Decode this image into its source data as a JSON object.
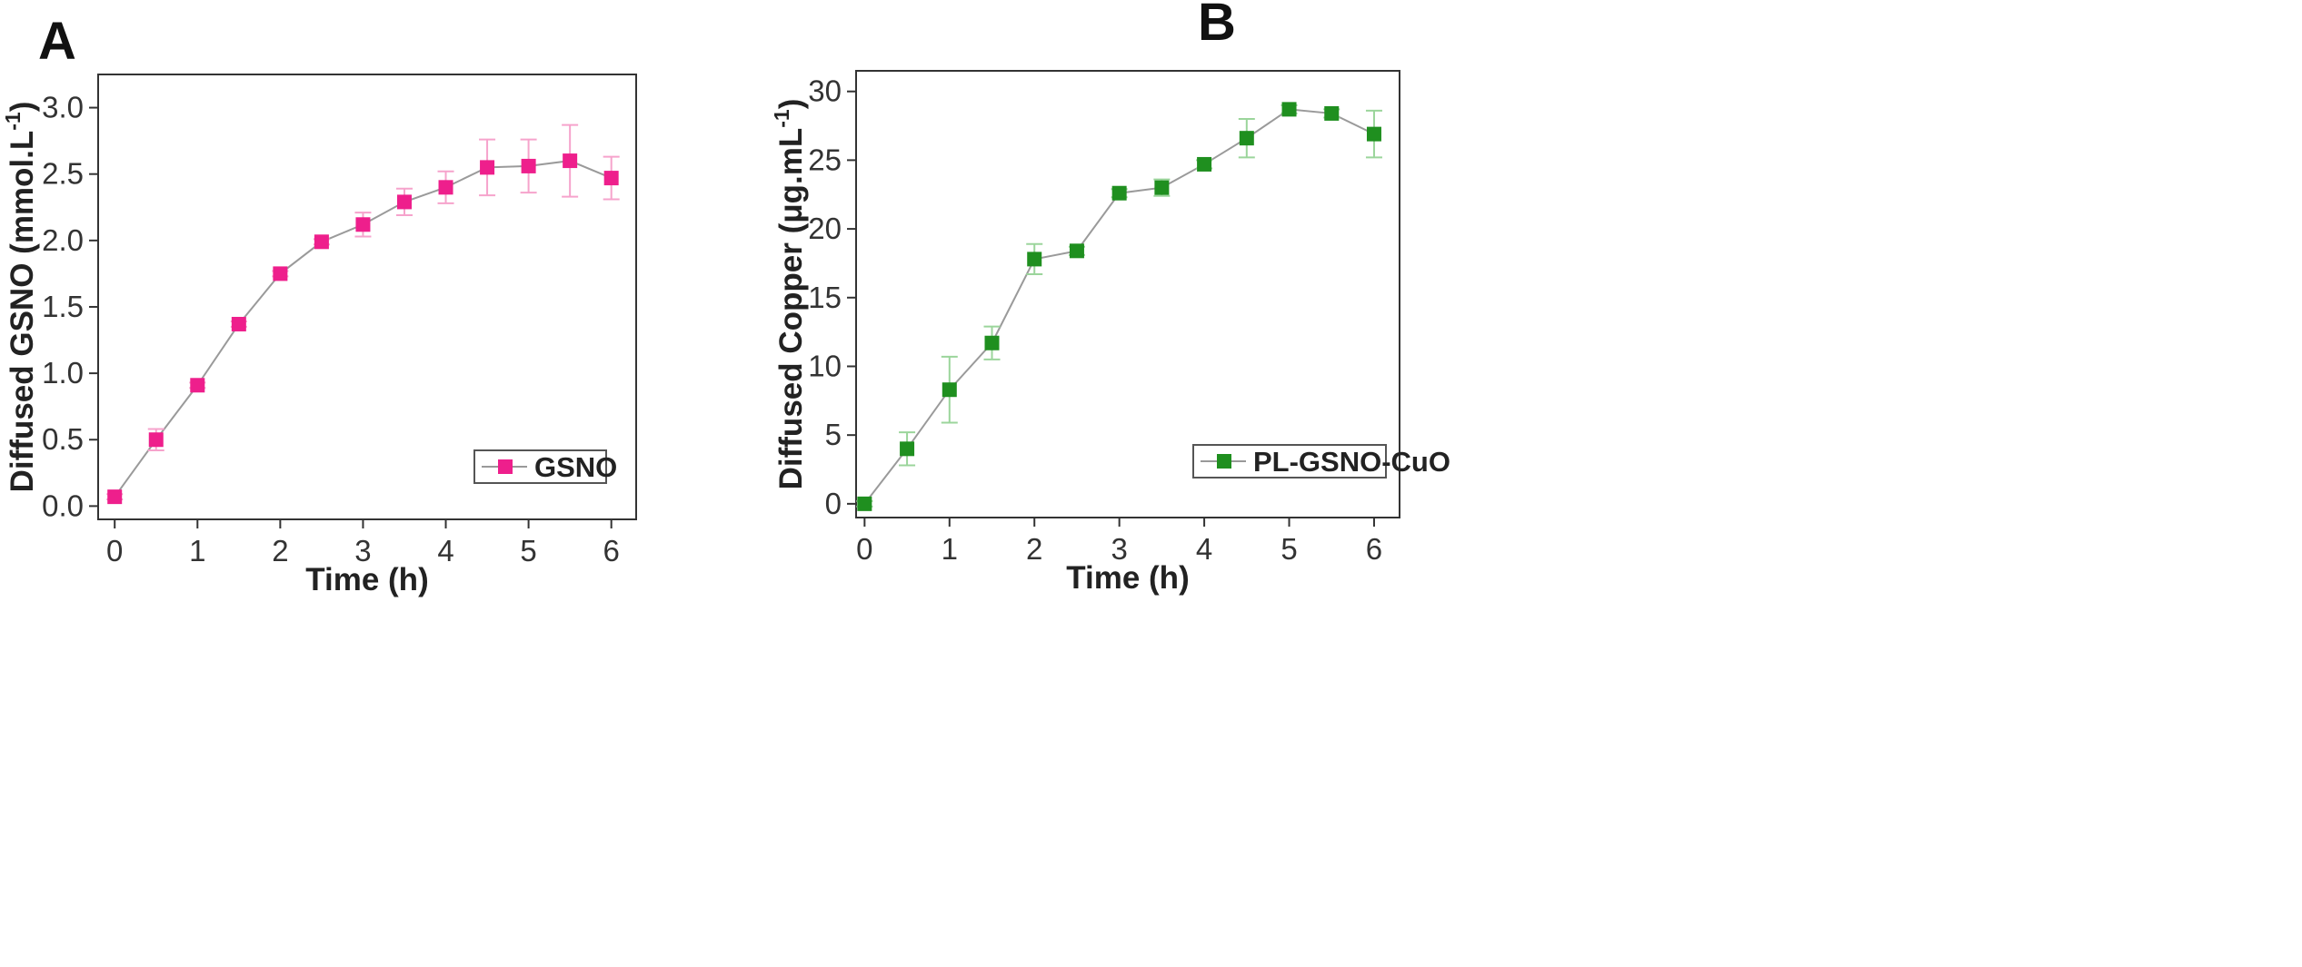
{
  "chart_data": [
    {
      "panel": "A",
      "type": "line",
      "xlabel": "Time (h)",
      "ylabel": "Diffused GSNO (mmol.L",
      "ylabel_sup": "-1",
      "ylabel_end": ")",
      "xlim": [
        -0.2,
        6.3
      ],
      "ylim": [
        -0.1,
        3.25
      ],
      "xticks": [
        0,
        1,
        2,
        3,
        4,
        5,
        6
      ],
      "xtick_labels": [
        "0",
        "1",
        "2",
        "3",
        "4",
        "5",
        "6"
      ],
      "yticks": [
        0.0,
        0.5,
        1.0,
        1.5,
        2.0,
        2.5,
        3.0
      ],
      "ytick_labels": [
        "0.0",
        "0.5",
        "1.0",
        "1.5",
        "2.0",
        "2.5",
        "3.0"
      ],
      "legend_position": "bottom-right",
      "series": [
        {
          "name": "GSNO",
          "color": "#ee1f8c",
          "error_color": "#f6a3cc",
          "x": [
            0,
            0.5,
            1,
            1.5,
            2,
            2.5,
            3,
            3.5,
            4,
            4.5,
            5,
            5.5,
            6
          ],
          "y": [
            0.07,
            0.5,
            0.91,
            1.37,
            1.75,
            1.99,
            2.12,
            2.29,
            2.4,
            2.55,
            2.56,
            2.6,
            2.47
          ],
          "err": [
            0.02,
            0.08,
            0.02,
            0.02,
            0.02,
            0.02,
            0.09,
            0.1,
            0.12,
            0.21,
            0.2,
            0.27,
            0.16
          ]
        }
      ]
    },
    {
      "panel": "B",
      "type": "line",
      "xlabel": "Time (h)",
      "ylabel": "Diffused Copper (μg.mL",
      "ylabel_sup": "-1",
      "ylabel_end": ")",
      "xlim": [
        -0.1,
        6.3
      ],
      "ylim": [
        -1,
        31.5
      ],
      "xticks": [
        0,
        1,
        2,
        3,
        4,
        5,
        6
      ],
      "xtick_labels": [
        "0",
        "1",
        "2",
        "3",
        "4",
        "5",
        "6"
      ],
      "yticks": [
        0,
        5,
        10,
        15,
        20,
        25,
        30
      ],
      "ytick_labels": [
        "0",
        "5",
        "10",
        "15",
        "20",
        "25",
        "30"
      ],
      "legend_position": "bottom-right",
      "series": [
        {
          "name": "PL-GSNO-CuO",
          "color": "#1f8f1f",
          "error_color": "#9bd59b",
          "x": [
            0,
            0.5,
            1,
            1.5,
            2,
            2.5,
            3,
            3.5,
            4,
            4.5,
            5,
            5.5,
            6
          ],
          "y": [
            0.0,
            4.0,
            8.3,
            11.7,
            17.8,
            18.4,
            22.6,
            23.0,
            24.7,
            26.6,
            28.7,
            28.4,
            26.9
          ],
          "err": [
            0.2,
            1.2,
            2.4,
            1.2,
            1.1,
            0.3,
            0.3,
            0.6,
            0.3,
            1.4,
            0.3,
            0.3,
            1.7
          ]
        }
      ]
    }
  ]
}
